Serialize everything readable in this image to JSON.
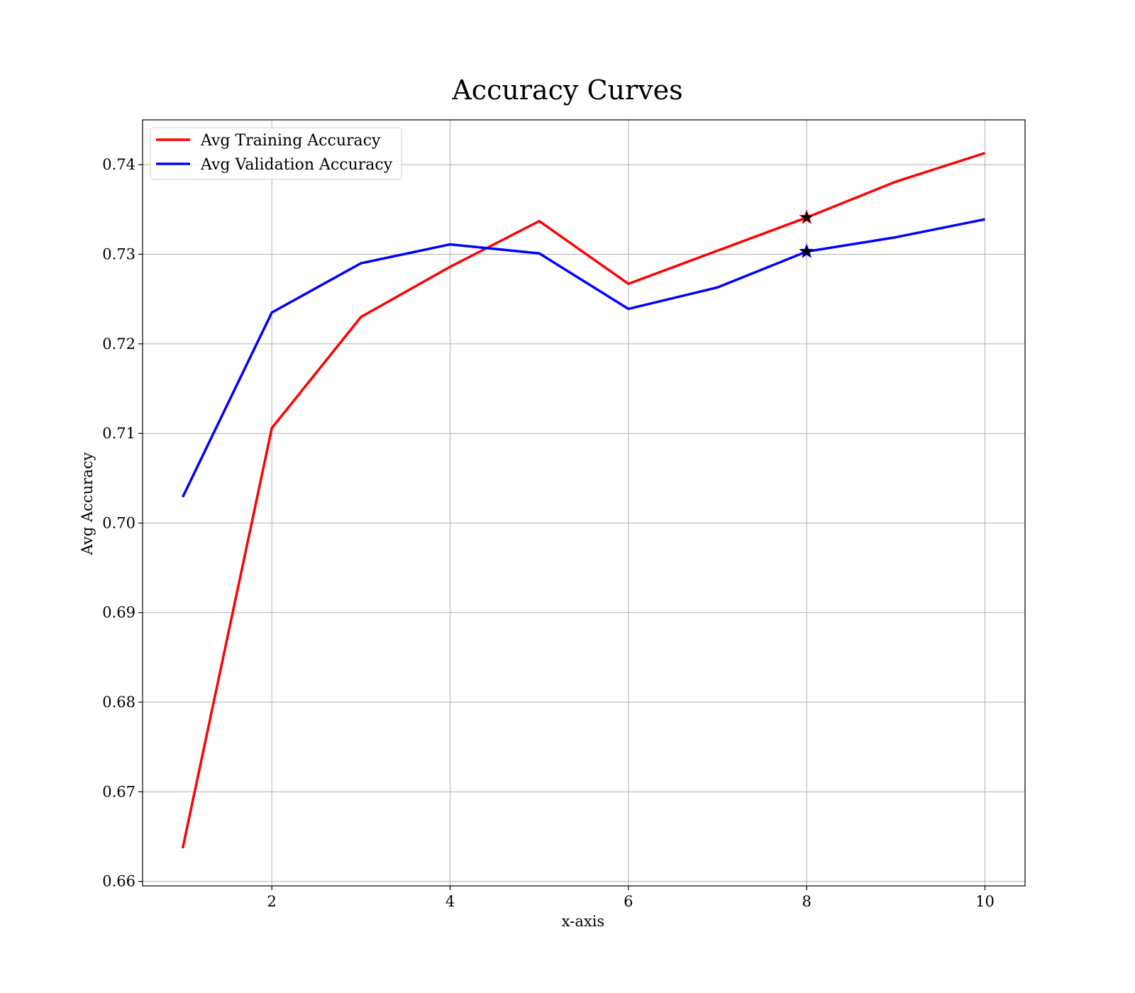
{
  "chart_data": {
    "type": "line",
    "title": "Accuracy Curves",
    "xlabel": "x-axis",
    "ylabel": "Avg Accuracy",
    "xlim": [
      0.55,
      10.45
    ],
    "ylim": [
      0.6595,
      0.745
    ],
    "x": [
      1,
      2,
      3,
      4,
      5,
      6,
      7,
      8,
      9,
      10
    ],
    "xticks": [
      2,
      4,
      6,
      8,
      10
    ],
    "yticks": [
      0.66,
      0.67,
      0.68,
      0.69,
      0.7,
      0.71,
      0.72,
      0.73,
      0.74
    ],
    "xtick_labels": [
      "2",
      "4",
      "6",
      "8",
      "10"
    ],
    "ytick_labels": [
      "0.66",
      "0.67",
      "0.68",
      "0.69",
      "0.70",
      "0.71",
      "0.72",
      "0.73",
      "0.74"
    ],
    "grid": true,
    "legend_position": "top-left",
    "series": [
      {
        "name": "Avg Training Accuracy",
        "color": "#ff0000",
        "values": [
          0.6637,
          0.7106,
          0.723,
          0.7286,
          0.7337,
          0.7267,
          0.7304,
          0.7341,
          0.7381,
          0.7413
        ],
        "marker": {
          "x": 8,
          "y": 0.7341,
          "symbol": "star"
        }
      },
      {
        "name": "Avg Validation Accuracy",
        "color": "#0000ff",
        "values": [
          0.7029,
          0.7235,
          0.729,
          0.7311,
          0.7301,
          0.7239,
          0.7263,
          0.7303,
          0.7319,
          0.7339
        ],
        "marker": {
          "x": 8,
          "y": 0.7303,
          "symbol": "star"
        }
      }
    ]
  }
}
